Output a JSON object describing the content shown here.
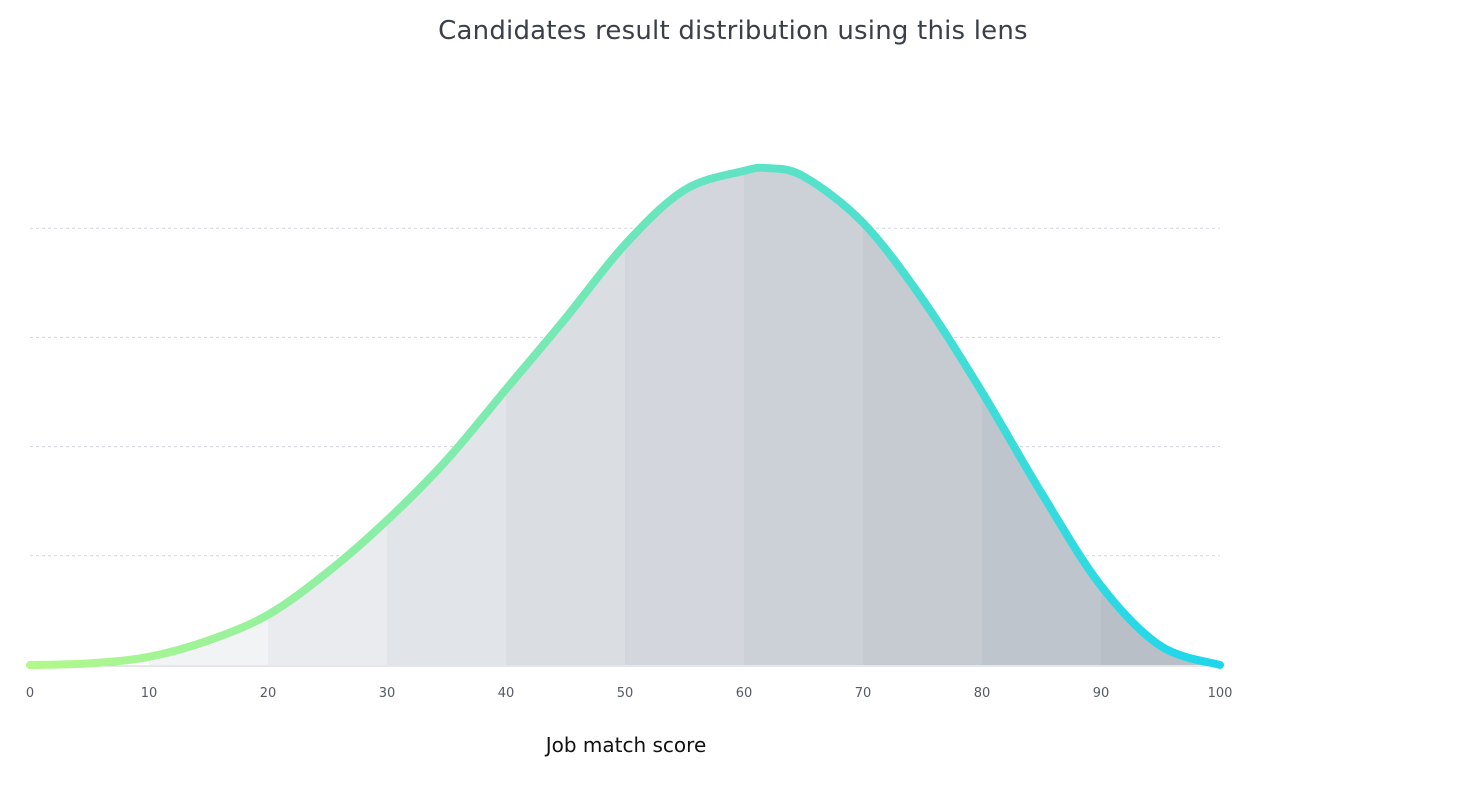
{
  "chart_data": {
    "type": "area",
    "title": "Candidates result distribution using this lens",
    "xlabel": "Job match score",
    "ylabel": "",
    "x_ticks": [
      "0",
      "10",
      "20",
      "30",
      "40",
      "50",
      "60",
      "70",
      "80",
      "90",
      "100"
    ],
    "xlim": [
      0,
      100
    ],
    "ylim": [
      0,
      1
    ],
    "grid": "horizontal-dashed",
    "gridlines": [
      0.2,
      0.4,
      0.6,
      0.8
    ],
    "x": [
      0,
      5,
      10,
      15,
      20,
      25,
      30,
      35,
      40,
      45,
      50,
      55,
      60,
      62,
      65,
      70,
      75,
      80,
      85,
      90,
      95,
      100
    ],
    "values": [
      0.0,
      0.003,
      0.015,
      0.045,
      0.092,
      0.17,
      0.265,
      0.375,
      0.505,
      0.635,
      0.77,
      0.87,
      0.905,
      0.91,
      0.895,
      0.81,
      0.67,
      0.5,
      0.315,
      0.145,
      0.035,
      0.0
    ],
    "bands": [
      {
        "from": 10,
        "to": 20,
        "color": "#f2f3f5"
      },
      {
        "from": 20,
        "to": 30,
        "color": "#e9ebee"
      },
      {
        "from": 30,
        "to": 40,
        "color": "#e1e4e8"
      },
      {
        "from": 40,
        "to": 50,
        "color": "#dadde2"
      },
      {
        "from": 50,
        "to": 60,
        "color": "#d3d7dd"
      },
      {
        "from": 60,
        "to": 70,
        "color": "#ccd1d8"
      },
      {
        "from": 70,
        "to": 80,
        "color": "#c6cbd2"
      },
      {
        "from": 80,
        "to": 90,
        "color": "#bfc5cc"
      },
      {
        "from": 90,
        "to": 100,
        "color": "#b9bfc7"
      }
    ],
    "line_gradient": [
      "#b2f88a",
      "#5fe3c4",
      "#1dd6ec"
    ]
  }
}
